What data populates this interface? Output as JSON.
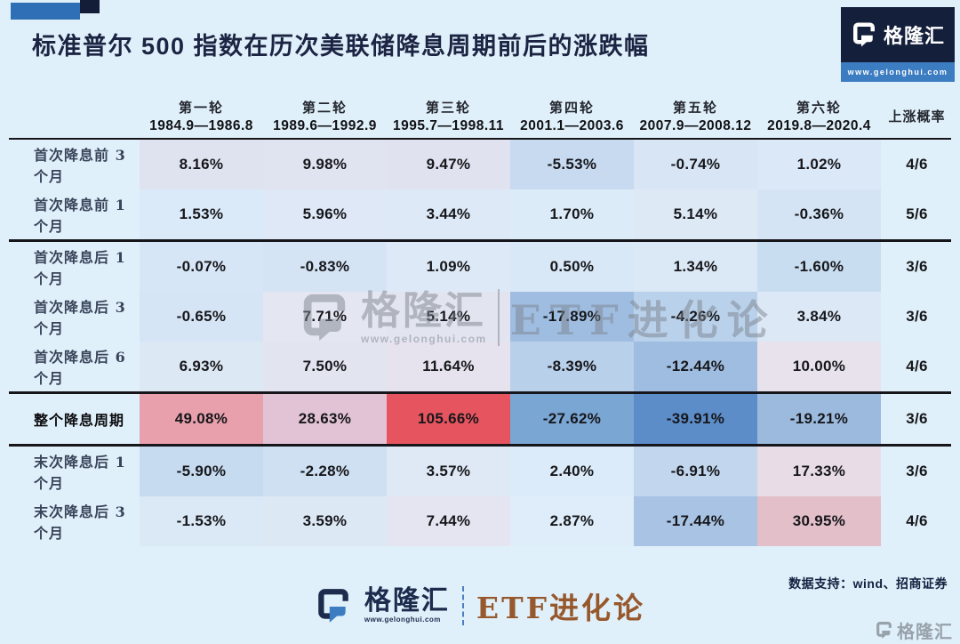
{
  "page": {
    "background": "#e0f0fa"
  },
  "header": {
    "title": "标准普尔 500 指数在历次美联储降息周期前后的涨跌幅",
    "brand_box": {
      "brand": "格隆汇",
      "url": "www.gelonghui.com"
    },
    "accent_blue": "#2f6fb5",
    "accent_navy": "#131d38"
  },
  "table": {
    "column_groups": [
      {
        "round": "第一轮",
        "period": "1984.9—1986.8"
      },
      {
        "round": "第二轮",
        "period": "1989.6—1992.9"
      },
      {
        "round": "第三轮",
        "period": "1995.7—1998.11"
      },
      {
        "round": "第四轮",
        "period": "2001.1—2003.6"
      },
      {
        "round": "第五轮",
        "period": "2007.9—2008.12"
      },
      {
        "round": "第六轮",
        "period": "2019.8—2020.4"
      }
    ],
    "prob_header": "上涨概率",
    "rows": [
      {
        "label": "首次降息前 3 个月",
        "values": [
          "8.16%",
          "9.98%",
          "9.47%",
          "-5.53%",
          "-0.74%",
          "1.02%"
        ],
        "colors": [
          "#dfe2ef",
          "#e0e3f0",
          "#e0e3ef",
          "#c7daf0",
          "#d7e5f5",
          "#dbe8f7"
        ],
        "prob": "4/6",
        "emphasis": false
      },
      {
        "label": "首次降息前 1 个月",
        "values": [
          "1.53%",
          "5.96%",
          "3.44%",
          "1.70%",
          "5.14%",
          "-0.36%"
        ],
        "colors": [
          "#dbeaf8",
          "#dee8f6",
          "#dde9f7",
          "#dcebf8",
          "#dee9f6",
          "#d5e4f4"
        ],
        "prob": "5/6",
        "emphasis": false
      },
      {
        "label": "首次降息后 1 个月",
        "values": [
          "-0.07%",
          "-0.83%",
          "1.09%",
          "0.50%",
          "1.34%",
          "-1.60%"
        ],
        "colors": [
          "#d7e6f6",
          "#d5e4f5",
          "#dee9f7",
          "#d9e8f7",
          "#dbe8f6",
          "#c9ddf1"
        ],
        "prob": "3/6",
        "emphasis": false
      },
      {
        "label": "首次降息后 3 个月",
        "values": [
          "-0.65%",
          "7.71%",
          "5.14%",
          "-17.89%",
          "-4.26%",
          "3.84%"
        ],
        "colors": [
          "#d6e5f5",
          "#e4e6f1",
          "#e2e5f0",
          "#9fbde1",
          "#b9d1ea",
          "#dce8f6"
        ],
        "prob": "3/6",
        "emphasis": false
      },
      {
        "label": "首次降息后 6 个月",
        "values": [
          "6.93%",
          "7.50%",
          "11.64%",
          "-8.39%",
          "-12.44%",
          "10.00%"
        ],
        "colors": [
          "#dde8f5",
          "#e2e5f0",
          "#e6e3ee",
          "#b9d0ea",
          "#9fbde1",
          "#e7e2ec"
        ],
        "prob": "4/6",
        "emphasis": false
      },
      {
        "label": "整个降息周期",
        "values": [
          "49.08%",
          "28.63%",
          "105.66%",
          "-27.62%",
          "-39.91%",
          "-19.21%"
        ],
        "colors": [
          "#e8a0ac",
          "#e2c3d5",
          "#e6555f",
          "#7aa6d4",
          "#5c8dc9",
          "#9cbade"
        ],
        "prob": "3/6",
        "emphasis": true
      },
      {
        "label": "末次降息后 1 个月",
        "values": [
          "-5.90%",
          "-2.28%",
          "3.57%",
          "2.40%",
          "-6.91%",
          "17.33%"
        ],
        "colors": [
          "#c6daf0",
          "#cfe0f2",
          "#dfe9f5",
          "#dbebf9",
          "#c2d7ee",
          "#e8dce7"
        ],
        "prob": "3/6",
        "emphasis": false
      },
      {
        "label": "末次降息后 3 个月",
        "values": [
          "-1.53%",
          "3.59%",
          "7.44%",
          "2.87%",
          "-17.44%",
          "30.95%"
        ],
        "colors": [
          "#dbe8f6",
          "#dde8f5",
          "#e4e5f0",
          "#deedf9",
          "#a8c3e3",
          "#e2bfc9"
        ],
        "prob": "4/6",
        "emphasis": false
      }
    ]
  },
  "watermark": {
    "brand": "格隆汇",
    "url": "www.gelonghui.com",
    "series": "ETF进化论"
  },
  "footer": {
    "brand": "格隆汇",
    "brand_url": "www.gelonghui.com",
    "series": "ETF进化论",
    "source": "数据支持：wind、招商证券",
    "corner_brand": "格隆汇"
  },
  "chart_data": {
    "type": "heatmap",
    "title": "标准普尔 500 指数在历次美联储降息周期前后的涨跌幅",
    "unit": "%",
    "columns": [
      "第一轮 1984.9—1986.8",
      "第二轮 1989.6—1992.9",
      "第三轮 1995.7—1998.11",
      "第四轮 2001.1—2003.6",
      "第五轮 2007.9—2008.12",
      "第六轮 2019.8—2020.4",
      "上涨概率"
    ],
    "rows": [
      {
        "label": "首次降息前 3 个月",
        "values": [
          8.16,
          9.98,
          9.47,
          -5.53,
          -0.74,
          1.02
        ],
        "win_rate": "4/6"
      },
      {
        "label": "首次降息前 1 个月",
        "values": [
          1.53,
          5.96,
          3.44,
          1.7,
          5.14,
          -0.36
        ],
        "win_rate": "5/6"
      },
      {
        "label": "首次降息后 1 个月",
        "values": [
          -0.07,
          -0.83,
          1.09,
          0.5,
          1.34,
          -1.6
        ],
        "win_rate": "3/6"
      },
      {
        "label": "首次降息后 3 个月",
        "values": [
          -0.65,
          7.71,
          5.14,
          -17.89,
          -4.26,
          3.84
        ],
        "win_rate": "3/6"
      },
      {
        "label": "首次降息后 6 个月",
        "values": [
          6.93,
          7.5,
          11.64,
          -8.39,
          -12.44,
          10.0
        ],
        "win_rate": "4/6"
      },
      {
        "label": "整个降息周期",
        "values": [
          49.08,
          28.63,
          105.66,
          -27.62,
          -39.91,
          -19.21
        ],
        "win_rate": "3/6"
      },
      {
        "label": "末次降息后 1 个月",
        "values": [
          -5.9,
          -2.28,
          3.57,
          2.4,
          -6.91,
          17.33
        ],
        "win_rate": "3/6"
      },
      {
        "label": "末次降息后 3 个月",
        "values": [
          -1.53,
          3.59,
          7.44,
          2.87,
          -17.44,
          30.95
        ],
        "win_rate": "4/6"
      }
    ],
    "color_coding": {
      "positive": "red/pink shades",
      "negative": "blue shades"
    },
    "source": "数据支持：wind、招商证券"
  }
}
